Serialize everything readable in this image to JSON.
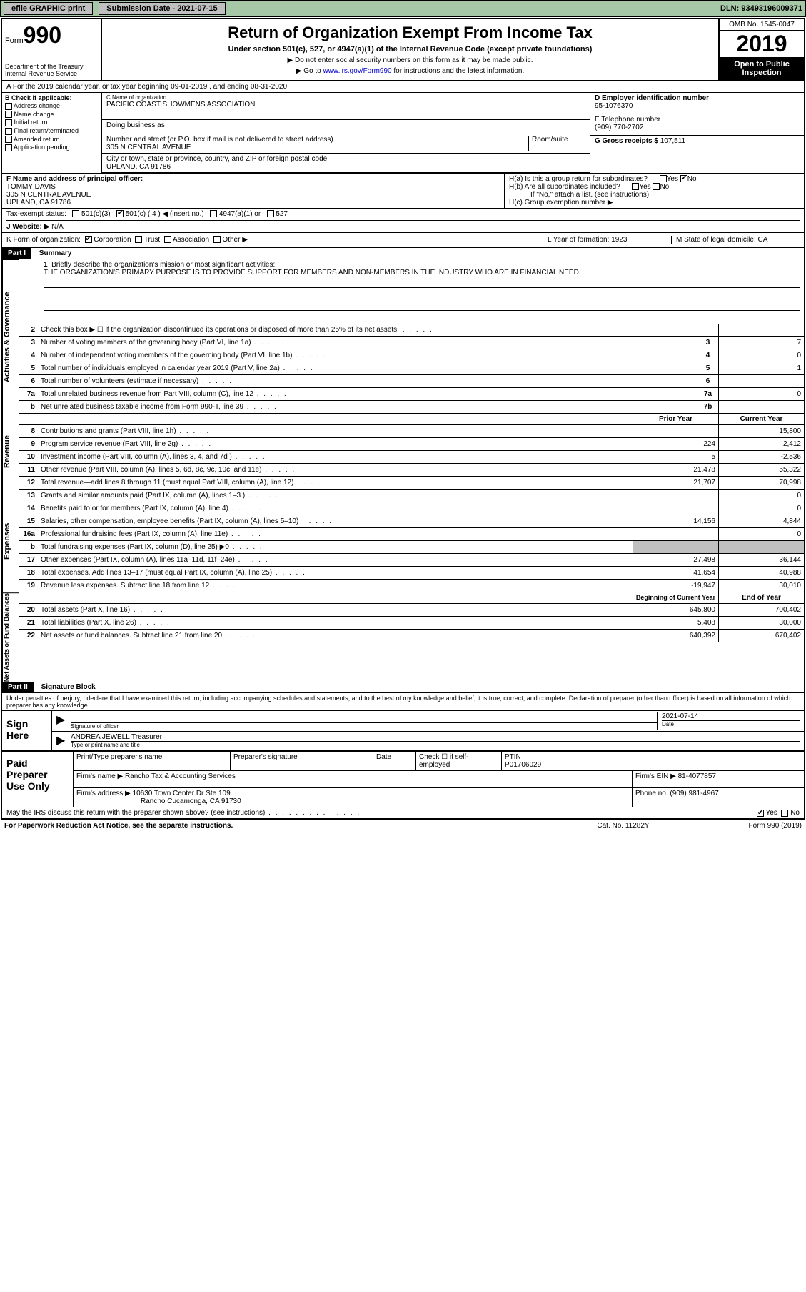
{
  "topbar": {
    "efile": "efile GRAPHIC print",
    "submission_label": "Submission Date - 2021-07-15",
    "dln": "DLN: 93493196009371"
  },
  "header": {
    "form_word": "Form",
    "form_no": "990",
    "dept": "Department of the Treasury\nInternal Revenue Service",
    "title": "Return of Organization Exempt From Income Tax",
    "sub": "Under section 501(c), 527, or 4947(a)(1) of the Internal Revenue Code (except private foundations)",
    "note1": "▶ Do not enter social security numbers on this form as it may be made public.",
    "note2_pre": "▶ Go to ",
    "note2_link": "www.irs.gov/Form990",
    "note2_post": " for instructions and the latest information.",
    "omb": "OMB No. 1545-0047",
    "year": "2019",
    "open": "Open to Public Inspection"
  },
  "rowA": "A For the 2019 calendar year, or tax year beginning 09-01-2019    , and ending 08-31-2020",
  "colB": {
    "title": "B Check if applicable:",
    "opts": [
      "Address change",
      "Name change",
      "Initial return",
      "Final return/terminated",
      "Amended return",
      "Application pending"
    ]
  },
  "org": {
    "name_lbl": "C Name of organization",
    "name": "PACIFIC COAST SHOWMENS ASSOCIATION",
    "dba_lbl": "Doing business as",
    "street_lbl": "Number and street (or P.O. box if mail is not delivered to street address)",
    "room_lbl": "Room/suite",
    "street": "305 N CENTRAL AVENUE",
    "city_lbl": "City or town, state or province, country, and ZIP or foreign postal code",
    "city": "UPLAND, CA  91786"
  },
  "ein": {
    "lbl": "D Employer identification number",
    "val": "95-1076370"
  },
  "tel": {
    "lbl": "E Telephone number",
    "val": "(909) 770-2702"
  },
  "gross": {
    "lbl": "G Gross receipts $",
    "val": "107,511"
  },
  "officer": {
    "lbl": "F  Name and address of principal officer:",
    "name": "TOMMY DAVIS",
    "addr1": "305 N CENTRAL AVENUE",
    "addr2": "UPLAND, CA  91786"
  },
  "h": {
    "a": "H(a)  Is this a group return for subordinates?",
    "b": "H(b)  Are all subordinates included?",
    "b_note": "If \"No,\" attach a list. (see instructions)",
    "c": "H(c)  Group exemption number ▶",
    "yes": "Yes",
    "no": "No"
  },
  "tax": {
    "lbl": "Tax-exempt status:",
    "o1": "501(c)(3)",
    "o2": "501(c) ( 4 ) ◀ (insert no.)",
    "o3": "4947(a)(1) or",
    "o4": "527"
  },
  "website": {
    "lbl": "J   Website: ▶",
    "val": "N/A"
  },
  "k": {
    "lbl": "K Form of organization:",
    "o1": "Corporation",
    "o2": "Trust",
    "o3": "Association",
    "o4": "Other ▶",
    "l": "L Year of formation: 1923",
    "m": "M State of legal domicile: CA"
  },
  "part1": {
    "tag": "Part I",
    "title": "Summary"
  },
  "mission": {
    "num": "1",
    "lbl": "Briefly describe the organization's mission or most significant activities:",
    "text": "THE ORGANIZATION'S PRIMARY PURPOSE IS TO PROVIDE SUPPORT FOR MEMBERS AND NON-MEMBERS IN THE INDUSTRY WHO ARE IN FINANCIAL NEED."
  },
  "lines_gov": [
    {
      "n": "2",
      "d": "Check this box ▶ ☐  if the organization discontinued its operations or disposed of more than 25% of its net assets.",
      "box": "",
      "v": ""
    },
    {
      "n": "3",
      "d": "Number of voting members of the governing body (Part VI, line 1a)",
      "box": "3",
      "v": "7"
    },
    {
      "n": "4",
      "d": "Number of independent voting members of the governing body (Part VI, line 1b)",
      "box": "4",
      "v": "0"
    },
    {
      "n": "5",
      "d": "Total number of individuals employed in calendar year 2019 (Part V, line 2a)",
      "box": "5",
      "v": "1"
    },
    {
      "n": "6",
      "d": "Total number of volunteers (estimate if necessary)",
      "box": "6",
      "v": ""
    },
    {
      "n": "7a",
      "d": "Total unrelated business revenue from Part VIII, column (C), line 12",
      "box": "7a",
      "v": "0"
    },
    {
      "n": "b",
      "d": "Net unrelated business taxable income from Form 990-T, line 39",
      "box": "7b",
      "v": ""
    }
  ],
  "col_hdrs": {
    "prior": "Prior Year",
    "current": "Current Year"
  },
  "lines_rev": [
    {
      "n": "8",
      "d": "Contributions and grants (Part VIII, line 1h)",
      "p": "",
      "c": "15,800"
    },
    {
      "n": "9",
      "d": "Program service revenue (Part VIII, line 2g)",
      "p": "224",
      "c": "2,412"
    },
    {
      "n": "10",
      "d": "Investment income (Part VIII, column (A), lines 3, 4, and 7d )",
      "p": "5",
      "c": "-2,536"
    },
    {
      "n": "11",
      "d": "Other revenue (Part VIII, column (A), lines 5, 6d, 8c, 9c, 10c, and 11e)",
      "p": "21,478",
      "c": "55,322"
    },
    {
      "n": "12",
      "d": "Total revenue—add lines 8 through 11 (must equal Part VIII, column (A), line 12)",
      "p": "21,707",
      "c": "70,998"
    }
  ],
  "lines_exp": [
    {
      "n": "13",
      "d": "Grants and similar amounts paid (Part IX, column (A), lines 1–3 )",
      "p": "",
      "c": "0"
    },
    {
      "n": "14",
      "d": "Benefits paid to or for members (Part IX, column (A), line 4)",
      "p": "",
      "c": "0"
    },
    {
      "n": "15",
      "d": "Salaries, other compensation, employee benefits (Part IX, column (A), lines 5–10)",
      "p": "14,156",
      "c": "4,844"
    },
    {
      "n": "16a",
      "d": "Professional fundraising fees (Part IX, column (A), line 11e)",
      "p": "",
      "c": "0"
    },
    {
      "n": "b",
      "d": "Total fundraising expenses (Part IX, column (D), line 25) ▶0",
      "p": "GREY",
      "c": "GREY"
    },
    {
      "n": "17",
      "d": "Other expenses (Part IX, column (A), lines 11a–11d, 11f–24e)",
      "p": "27,498",
      "c": "36,144"
    },
    {
      "n": "18",
      "d": "Total expenses. Add lines 13–17 (must equal Part IX, column (A), line 25)",
      "p": "41,654",
      "c": "40,988"
    },
    {
      "n": "19",
      "d": "Revenue less expenses. Subtract line 18 from line 12",
      "p": "-19,947",
      "c": "30,010"
    }
  ],
  "col_hdrs2": {
    "beg": "Beginning of Current Year",
    "end": "End of Year"
  },
  "lines_net": [
    {
      "n": "20",
      "d": "Total assets (Part X, line 16)",
      "p": "645,800",
      "c": "700,402"
    },
    {
      "n": "21",
      "d": "Total liabilities (Part X, line 26)",
      "p": "5,408",
      "c": "30,000"
    },
    {
      "n": "22",
      "d": "Net assets or fund balances. Subtract line 21 from line 20",
      "p": "640,392",
      "c": "670,402"
    }
  ],
  "part2": {
    "tag": "Part II",
    "title": "Signature Block"
  },
  "sig": {
    "decl": "Under penalties of perjury, I declare that I have examined this return, including accompanying schedules and statements, and to the best of my knowledge and belief, it is true, correct, and complete. Declaration of preparer (other than officer) is based on all information of which preparer has any knowledge.",
    "here": "Sign Here",
    "sig_lbl": "Signature of officer",
    "date_lbl": "Date",
    "date": "2021-07-14",
    "name": "ANDREA JEWELL  Treasurer",
    "name_lbl": "Type or print name and title"
  },
  "prep": {
    "title": "Paid Preparer Use Only",
    "h1": "Print/Type preparer's name",
    "h2": "Preparer's signature",
    "h3": "Date",
    "h4": "Check ☐ if self-employed",
    "h5_lbl": "PTIN",
    "h5": "P01706029",
    "firm_lbl": "Firm's name    ▶",
    "firm": "Rancho Tax & Accounting Services",
    "ein_lbl": "Firm's EIN ▶",
    "ein": "81-4077857",
    "addr_lbl": "Firm's address ▶",
    "addr1": "10630 Town Center Dr Ste 109",
    "addr2": "Rancho Cucamonga, CA  91730",
    "phone_lbl": "Phone no.",
    "phone": "(909) 981-4967"
  },
  "bottom": {
    "q": "May the IRS discuss this return with the preparer shown above? (see instructions)",
    "yes": "Yes",
    "no": "No",
    "pra": "For Paperwork Reduction Act Notice, see the separate instructions.",
    "cat": "Cat. No. 11282Y",
    "form": "Form 990 (2019)"
  },
  "side_labels": {
    "gov": "Activities & Governance",
    "rev": "Revenue",
    "exp": "Expenses",
    "net": "Net Assets or Fund Balances"
  }
}
